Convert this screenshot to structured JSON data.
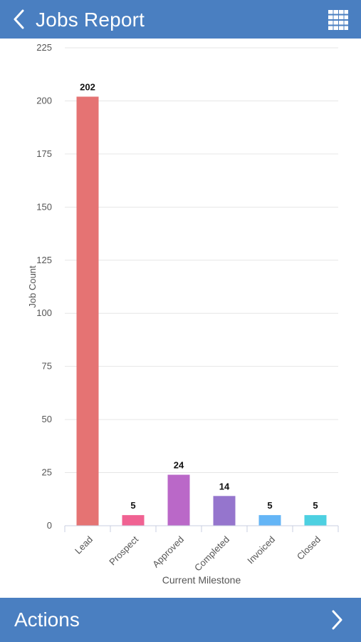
{
  "header": {
    "title": "Jobs Report",
    "back_icon": "chevron-left-icon",
    "menu_icon": "grid-icon"
  },
  "footer": {
    "label": "Actions",
    "icon": "chevron-right-icon"
  },
  "colors": {
    "bar_bg": "#4a7fc1"
  },
  "chart_data": {
    "type": "bar",
    "categories": [
      "Lead",
      "Prospect",
      "Approved",
      "Completed",
      "Invoiced",
      "Closed"
    ],
    "values": [
      202,
      5,
      24,
      14,
      5,
      5
    ],
    "colors": [
      "#e57373",
      "#f06292",
      "#ba68c8",
      "#9575cd",
      "#64b5f6",
      "#4dd0e1"
    ],
    "xlabel": "Current Milestone",
    "ylabel": "Job Count",
    "ylim": [
      0,
      225
    ],
    "yticks": [
      0,
      25,
      50,
      75,
      100,
      125,
      150,
      175,
      200,
      225
    ],
    "grid": true,
    "data_labels": true
  }
}
